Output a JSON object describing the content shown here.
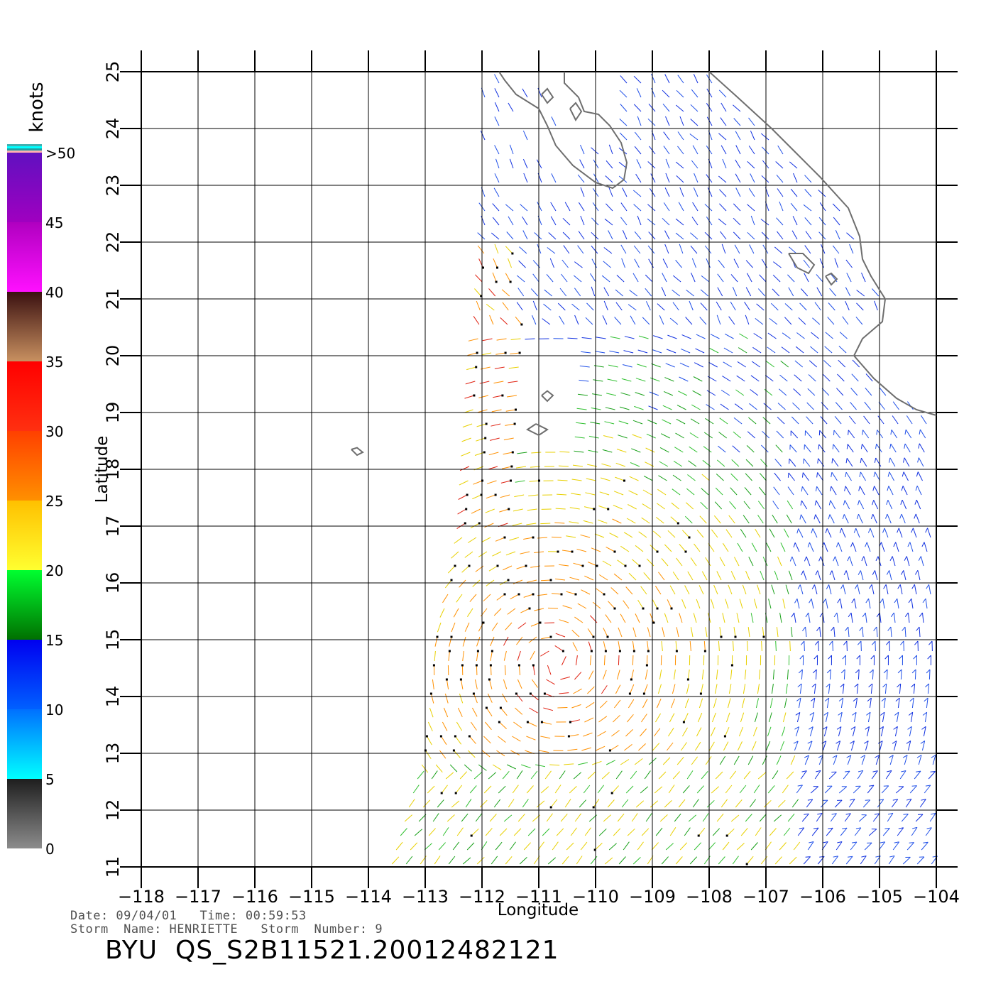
{
  "colorbar": {
    "unit_label": "knots",
    "ticks": [
      {
        "label": "0",
        "value": 0
      },
      {
        "label": "5",
        "value": 5
      },
      {
        "label": "10",
        "value": 10
      },
      {
        "label": "15",
        "value": 15
      },
      {
        "label": "20",
        "value": 20
      },
      {
        "label": "25",
        "value": 25
      },
      {
        "label": "30",
        "value": 30
      },
      {
        "label": "35",
        "value": 35
      },
      {
        "label": "40",
        "value": 40
      },
      {
        "label": "45",
        "value": 45
      },
      {
        "label": ">50",
        "value": 50
      }
    ],
    "bands": [
      {
        "from": 0,
        "to": 5,
        "colors": [
          "#8c8c8c",
          "#1e1e1e"
        ]
      },
      {
        "from": 5,
        "to": 10,
        "colors": [
          "#00ffff",
          "#0070ff"
        ]
      },
      {
        "from": 10,
        "to": 15,
        "colors": [
          "#0060ff",
          "#0000f0"
        ]
      },
      {
        "from": 15,
        "to": 20,
        "colors": [
          "#007000",
          "#00ff30"
        ]
      },
      {
        "from": 20,
        "to": 25,
        "colors": [
          "#ffff30",
          "#ffc000"
        ]
      },
      {
        "from": 25,
        "to": 30,
        "colors": [
          "#ff9000",
          "#ff4000"
        ]
      },
      {
        "from": 30,
        "to": 35,
        "colors": [
          "#ff3010",
          "#ff0000"
        ]
      },
      {
        "from": 35,
        "to": 40,
        "colors": [
          "#c89060",
          "#3a1010"
        ]
      },
      {
        "from": 40,
        "to": 45,
        "colors": [
          "#ff10ff",
          "#b000c0"
        ]
      },
      {
        "from": 45,
        "to": 50,
        "colors": [
          "#a000c0",
          "#6010c0"
        ]
      }
    ],
    "top_stripe_colors": [
      "#ffb0b0",
      "#20a0a0",
      "#00ffff",
      "#40b0b0"
    ]
  },
  "map": {
    "lon_range": [
      -118,
      -104
    ],
    "lat_range": [
      11,
      25
    ],
    "xlabel": "Longitude",
    "ylabel": "Latitude",
    "lon_ticks": [
      {
        "value": -118,
        "label": "−118"
      },
      {
        "value": -117,
        "label": "−117"
      },
      {
        "value": -116,
        "label": "−116"
      },
      {
        "value": -115,
        "label": "−115"
      },
      {
        "value": -114,
        "label": "−114"
      },
      {
        "value": -113,
        "label": "−113"
      },
      {
        "value": -112,
        "label": "−112"
      },
      {
        "value": -111,
        "label": "−111"
      },
      {
        "value": -110,
        "label": "−110"
      },
      {
        "value": -109,
        "label": "−109"
      },
      {
        "value": -108,
        "label": "−108"
      },
      {
        "value": -107,
        "label": "−107"
      },
      {
        "value": -106,
        "label": "−106"
      },
      {
        "value": -105,
        "label": "−105"
      },
      {
        "value": -104,
        "label": "−104"
      }
    ],
    "lat_ticks": [
      {
        "value": 11,
        "label": "11"
      },
      {
        "value": 12,
        "label": "12"
      },
      {
        "value": 13,
        "label": "13"
      },
      {
        "value": 14,
        "label": "14"
      },
      {
        "value": 15,
        "label": "15"
      },
      {
        "value": 16,
        "label": "16"
      },
      {
        "value": 17,
        "label": "17"
      },
      {
        "value": 18,
        "label": "18"
      },
      {
        "value": 19,
        "label": "19"
      },
      {
        "value": 20,
        "label": "20"
      },
      {
        "value": 21,
        "label": "21"
      },
      {
        "value": 22,
        "label": "22"
      },
      {
        "value": 23,
        "label": "23"
      },
      {
        "value": 24,
        "label": "24"
      },
      {
        "value": 25,
        "label": "25"
      }
    ],
    "grid": true,
    "coastline_color": "#6e6e6e",
    "coastlines": {
      "baja": [
        [
          -111.7,
          25.0
        ],
        [
          -111.6,
          24.85
        ],
        [
          -111.4,
          24.6
        ],
        [
          -111.0,
          24.35
        ],
        [
          -110.85,
          24.05
        ],
        [
          -110.7,
          23.7
        ],
        [
          -110.4,
          23.35
        ],
        [
          -110.0,
          23.05
        ],
        [
          -109.7,
          22.95
        ],
        [
          -109.5,
          23.1
        ],
        [
          -109.45,
          23.4
        ],
        [
          -109.55,
          23.75
        ],
        [
          -109.75,
          24.05
        ],
        [
          -109.95,
          24.25
        ],
        [
          -110.2,
          24.3
        ],
        [
          -110.3,
          24.55
        ],
        [
          -110.55,
          24.8
        ],
        [
          -110.55,
          25.0
        ]
      ],
      "mainland": [
        [
          -108.0,
          25.0
        ],
        [
          -107.5,
          24.55
        ],
        [
          -106.9,
          24.0
        ],
        [
          -106.5,
          23.6
        ],
        [
          -106.05,
          23.15
        ],
        [
          -105.55,
          22.6
        ],
        [
          -105.35,
          22.1
        ],
        [
          -105.3,
          21.7
        ],
        [
          -105.15,
          21.4
        ],
        [
          -104.9,
          21.0
        ],
        [
          -104.95,
          20.6
        ],
        [
          -105.3,
          20.3
        ],
        [
          -105.45,
          20.0
        ],
        [
          -105.1,
          19.6
        ],
        [
          -104.7,
          19.25
        ],
        [
          -104.35,
          19.05
        ],
        [
          -104.0,
          18.95
        ]
      ],
      "islands": [
        [
          [
            -110.95,
            24.6
          ],
          [
            -110.85,
            24.45
          ],
          [
            -110.75,
            24.55
          ],
          [
            -110.85,
            24.7
          ],
          [
            -110.95,
            24.6
          ]
        ],
        [
          [
            -110.45,
            24.35
          ],
          [
            -110.35,
            24.15
          ],
          [
            -110.25,
            24.3
          ],
          [
            -110.35,
            24.45
          ],
          [
            -110.45,
            24.35
          ]
        ],
        [
          [
            -106.6,
            21.8
          ],
          [
            -106.45,
            21.55
          ],
          [
            -106.25,
            21.45
          ],
          [
            -106.15,
            21.6
          ],
          [
            -106.35,
            21.8
          ],
          [
            -106.6,
            21.8
          ]
        ],
        [
          [
            -105.95,
            21.4
          ],
          [
            -105.85,
            21.25
          ],
          [
            -105.75,
            21.35
          ],
          [
            -105.85,
            21.45
          ],
          [
            -105.95,
            21.4
          ]
        ],
        [
          [
            -110.95,
            19.3
          ],
          [
            -110.85,
            19.2
          ],
          [
            -110.75,
            19.3
          ],
          [
            -110.85,
            19.38
          ],
          [
            -110.95,
            19.3
          ]
        ],
        [
          [
            -111.05,
            18.8
          ],
          [
            -111.2,
            18.7
          ],
          [
            -111.0,
            18.6
          ],
          [
            -110.85,
            18.7
          ],
          [
            -111.05,
            18.8
          ]
        ],
        [
          [
            -114.3,
            18.35
          ],
          [
            -114.2,
            18.25
          ],
          [
            -114.1,
            18.3
          ],
          [
            -114.2,
            18.38
          ],
          [
            -114.3,
            18.35
          ]
        ]
      ]
    }
  },
  "footer": {
    "date_line": "Date: 09/04/01   Time: 00:59:53",
    "storm_line": "Storm  Name: HENRIETTE   Storm  Number: 9",
    "product_id": "BYU  QS_S2B11521.20012482121"
  }
}
